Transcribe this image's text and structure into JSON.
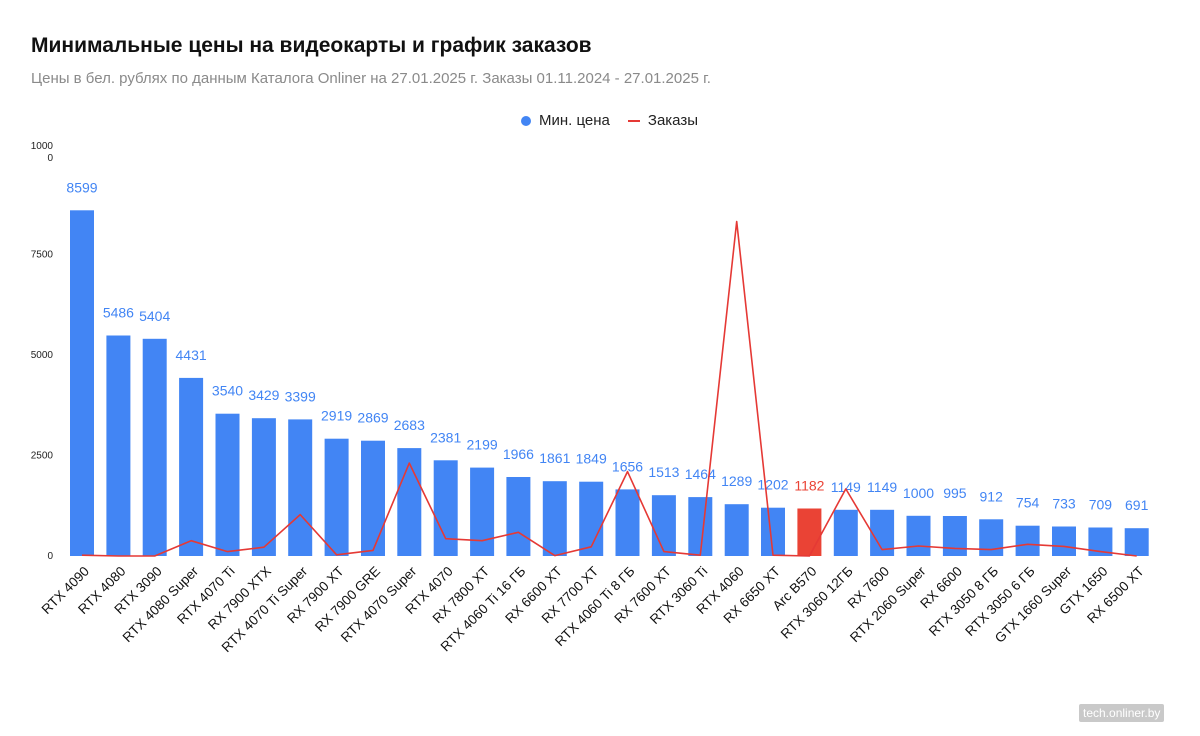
{
  "chart_data": {
    "type": "bar",
    "title": "Минимальные цены на видеокарты и график заказов",
    "subtitle": "Цены в бел. рублях по данным Каталога Onliner на 27.01.2025 г. Заказы 01.11.2024 - 27.01.2025 г.",
    "categories": [
      "RTX 4090",
      "RTX 4080",
      "RTX 3090",
      "RTX 4080 Super",
      "RTX 4070 Ti",
      "RX 7900 XTX",
      "RTX 4070 Ti Super",
      "RX 7900 XT",
      "RX 7900 GRE",
      "RTX 4070 Super",
      "RTX 4070",
      "RX 7800 XT",
      "RTX 4060 Ti 16 ГБ",
      "RX 6600 XT",
      "RX 7700 XT",
      "RTX 4060 Ti 8 ГБ",
      "RX 7600 XT",
      "RTX 3060 Ti",
      "RTX 4060",
      "RX 6650 XT",
      "Arc B570",
      "RTX 3060 12ГБ",
      "RX 7600",
      "RTX 2060 Super",
      "RX 6600",
      "RTX 3050 8 ГБ",
      "RTX 3050 6 ГБ",
      "GTX 1660 Super",
      "GTX 1650",
      "RX 6500 XT"
    ],
    "series": [
      {
        "name": "Мин. цена",
        "kind": "bar",
        "color": "#4285f4",
        "values": [
          8599,
          5486,
          5404,
          4431,
          3540,
          3429,
          3399,
          2919,
          2869,
          2683,
          2381,
          2199,
          1966,
          1861,
          1849,
          1656,
          1513,
          1464,
          1289,
          1202,
          1182,
          1149,
          1149,
          1000,
          995,
          912,
          754,
          733,
          709,
          691
        ],
        "labels": [
          "8599",
          "5486",
          "5404",
          "4431",
          "3540",
          "3429",
          "3399",
          "2919",
          "2869",
          "2683",
          "2381",
          "2199",
          "1966",
          "1861",
          "1849",
          "1656",
          "1513",
          "1464",
          "1289",
          "1202",
          "1182",
          "1149",
          "1149",
          "1000",
          "995",
          "912",
          "754",
          "733",
          "709",
          "691"
        ]
      },
      {
        "name": "Заказы",
        "kind": "line",
        "color": "#e53935",
        "values": [
          20,
          0,
          0,
          380,
          110,
          220,
          1030,
          30,
          140,
          2310,
          430,
          380,
          590,
          10,
          230,
          2100,
          110,
          20,
          8320,
          20,
          0,
          1670,
          160,
          250,
          190,
          160,
          290,
          240,
          110,
          0
        ]
      }
    ],
    "highlight_index": 20,
    "highlight_color": "#ea4335",
    "y_ticks": [
      "0",
      "2500",
      "5000",
      "7500",
      "1000\n0"
    ],
    "y_tick_values": [
      0,
      2500,
      5000,
      7500,
      10000
    ],
    "ylim": [
      0,
      10000
    ],
    "grid": false,
    "legend_position": "top-center"
  },
  "watermark": "tech.onliner.by"
}
